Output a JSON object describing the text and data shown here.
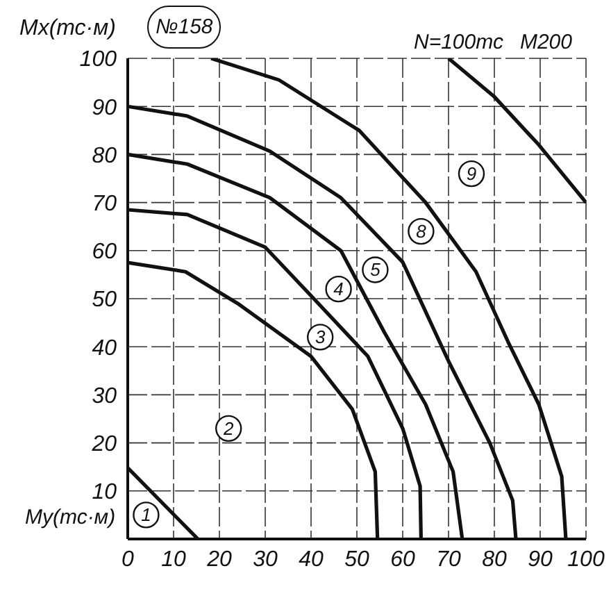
{
  "chart_data": {
    "type": "line",
    "title": "№158",
    "xlabel": "My(тс·м)",
    "ylabel": "Mx(тс·м)",
    "xlim": [
      0,
      100
    ],
    "xticks": [
      0,
      10,
      20,
      30,
      40,
      50,
      60,
      70,
      80,
      90,
      100
    ],
    "ylim": [
      0,
      100
    ],
    "yticks": [
      {
        "value": 0,
        "label": null
      },
      10,
      20,
      30,
      40,
      50,
      60,
      70,
      80,
      90,
      100
    ],
    "grid": true,
    "marker": "none",
    "line_style": "solid",
    "series": [
      {
        "color": "#111111",
        "x": [
          0,
          15.3
        ],
        "values": [
          14.8,
          0
        ]
      },
      {
        "color": "#111111",
        "x": [
          0,
          12.6,
          24,
          40,
          49,
          54,
          54.5
        ],
        "values": [
          57.5,
          55.6,
          49,
          38,
          27,
          14,
          0
        ]
      },
      {
        "color": "#111111",
        "x": [
          0,
          13,
          30,
          40.6,
          52.4,
          60,
          63.8,
          64
        ],
        "values": [
          68.5,
          67.5,
          60.7,
          50,
          38,
          23,
          11,
          0
        ]
      },
      {
        "color": "#111111",
        "x": [
          0,
          13,
          31,
          46.5,
          56,
          65,
          71,
          73
        ],
        "values": [
          80,
          78,
          71,
          60,
          43,
          28,
          14,
          0
        ]
      },
      {
        "color": "#111111",
        "x": [
          0,
          13,
          31,
          46.5,
          60,
          70,
          79,
          84,
          84.7
        ],
        "values": [
          90,
          88,
          80.7,
          71,
          57.6,
          37,
          20,
          8,
          0
        ]
      },
      {
        "color": "#111111",
        "x": [
          18.2,
          33,
          50.5,
          65,
          76,
          83,
          89.7,
          94.7,
          95.6
        ],
        "values": [
          100,
          95.5,
          85,
          70,
          55.6,
          41,
          28,
          13,
          0
        ]
      },
      {
        "color": "#111111",
        "x": [
          70,
          80,
          89.7,
          100
        ],
        "values": [
          100,
          92,
          82,
          70
        ]
      }
    ],
    "annotations": [
      "N=100тс",
      "M200",
      {
        "text": "1",
        "x": 4,
        "y": 5
      },
      {
        "text": "2",
        "x": 22,
        "y": 23
      },
      {
        "text": "3",
        "x": 42,
        "y": 42
      },
      {
        "text": "4",
        "x": 46,
        "y": 52
      },
      {
        "text": "5",
        "x": 54,
        "y": 56
      },
      {
        "text": "8",
        "x": 64,
        "y": 64
      },
      {
        "text": "9",
        "x": 75,
        "y": 76
      }
    ]
  }
}
